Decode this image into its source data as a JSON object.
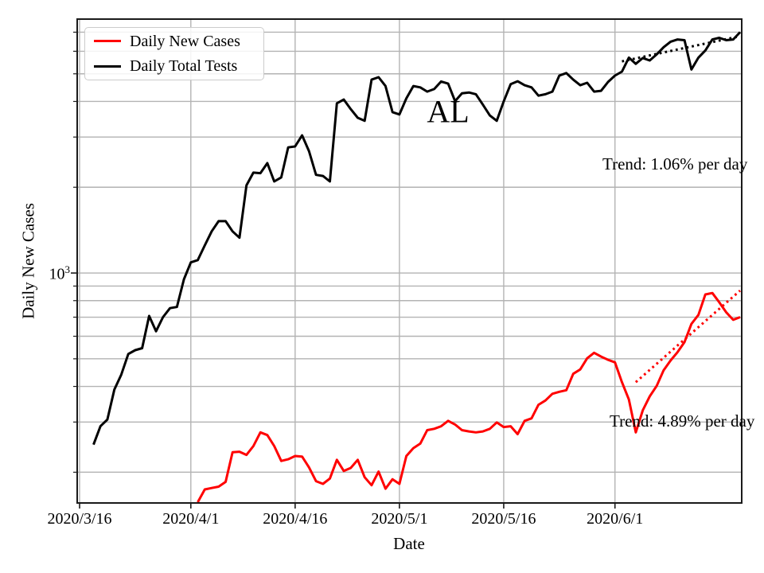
{
  "chart_data": {
    "type": "line",
    "yscale": "log",
    "state_label": "AL",
    "xlabel": "Date",
    "ylabel": "Daily New Cases",
    "x_ticks": [
      "2020/3/16",
      "2020/4/1",
      "2020/4/16",
      "2020/5/1",
      "2020/5/16",
      "2020/6/1"
    ],
    "xlim": [
      "2020/3/16",
      "2020/6/19"
    ],
    "ylim": [
      156,
      7780
    ],
    "y_major_tick": {
      "base": "10",
      "exponent": "3",
      "value": 1000
    },
    "y_minor_ticks": [
      200,
      300,
      400,
      500,
      600,
      700,
      800,
      900,
      2000,
      3000,
      4000,
      5000,
      6000,
      7000
    ],
    "grid": true,
    "legend_position": "upper-left",
    "legend": [
      {
        "label": "Daily New Cases",
        "color": "#ff0000"
      },
      {
        "label": "Daily Total Tests",
        "color": "#000000"
      }
    ],
    "annotations": [
      {
        "id": "tests-trend",
        "text": "Trend: 1.06% per day",
        "color": "#000000"
      },
      {
        "id": "cases-trend",
        "text": "Trend: 4.89% per day",
        "color": "#000000"
      }
    ],
    "series": [
      {
        "name": "Daily Total Tests",
        "color": "#000000",
        "style": "solid",
        "points": [
          [
            "2020/3/18",
            250
          ],
          [
            "2020/3/19",
            290
          ],
          [
            "2020/3/20",
            306
          ],
          [
            "2020/3/21",
            390
          ],
          [
            "2020/3/22",
            440
          ],
          [
            "2020/3/23",
            520
          ],
          [
            "2020/3/24",
            536
          ],
          [
            "2020/3/25",
            545
          ],
          [
            "2020/3/26",
            707
          ],
          [
            "2020/3/27",
            625
          ],
          [
            "2020/3/28",
            700
          ],
          [
            "2020/3/29",
            753
          ],
          [
            "2020/3/30",
            760
          ],
          [
            "2020/3/31",
            950
          ],
          [
            "2020/4/1",
            1090
          ],
          [
            "2020/4/2",
            1110
          ],
          [
            "2020/4/3",
            1250
          ],
          [
            "2020/4/4",
            1400
          ],
          [
            "2020/4/5",
            1520
          ],
          [
            "2020/4/6",
            1520
          ],
          [
            "2020/4/7",
            1400
          ],
          [
            "2020/4/8",
            1330
          ],
          [
            "2020/4/9",
            2030
          ],
          [
            "2020/4/10",
            2250
          ],
          [
            "2020/4/11",
            2240
          ],
          [
            "2020/4/12",
            2430
          ],
          [
            "2020/4/13",
            2095
          ],
          [
            "2020/4/14",
            2165
          ],
          [
            "2020/4/15",
            2760
          ],
          [
            "2020/4/16",
            2780
          ],
          [
            "2020/4/17",
            3040
          ],
          [
            "2020/4/18",
            2675
          ],
          [
            "2020/4/19",
            2210
          ],
          [
            "2020/4/20",
            2190
          ],
          [
            "2020/4/21",
            2095
          ],
          [
            "2020/4/22",
            3940
          ],
          [
            "2020/4/23",
            4060
          ],
          [
            "2020/4/24",
            3760
          ],
          [
            "2020/4/25",
            3505
          ],
          [
            "2020/4/26",
            3420
          ],
          [
            "2020/4/27",
            4770
          ],
          [
            "2020/4/28",
            4865
          ],
          [
            "2020/4/29",
            4530
          ],
          [
            "2020/4/30",
            3670
          ],
          [
            "2020/5/1",
            3600
          ],
          [
            "2020/5/2",
            4100
          ],
          [
            "2020/5/3",
            4530
          ],
          [
            "2020/5/4",
            4480
          ],
          [
            "2020/5/5",
            4330
          ],
          [
            "2020/5/6",
            4420
          ],
          [
            "2020/5/7",
            4700
          ],
          [
            "2020/5/8",
            4620
          ],
          [
            "2020/5/9",
            4010
          ],
          [
            "2020/5/10",
            4270
          ],
          [
            "2020/5/11",
            4300
          ],
          [
            "2020/5/12",
            4240
          ],
          [
            "2020/5/13",
            3900
          ],
          [
            "2020/5/14",
            3570
          ],
          [
            "2020/5/15",
            3420
          ],
          [
            "2020/5/16",
            4000
          ],
          [
            "2020/5/17",
            4600
          ],
          [
            "2020/5/18",
            4710
          ],
          [
            "2020/5/19",
            4560
          ],
          [
            "2020/5/20",
            4480
          ],
          [
            "2020/5/21",
            4190
          ],
          [
            "2020/5/22",
            4240
          ],
          [
            "2020/5/23",
            4330
          ],
          [
            "2020/5/24",
            4930
          ],
          [
            "2020/5/25",
            5030
          ],
          [
            "2020/5/26",
            4770
          ],
          [
            "2020/5/27",
            4560
          ],
          [
            "2020/5/28",
            4650
          ],
          [
            "2020/5/29",
            4330
          ],
          [
            "2020/5/30",
            4360
          ],
          [
            "2020/5/31",
            4680
          ],
          [
            "2020/6/1",
            4930
          ],
          [
            "2020/6/2",
            5090
          ],
          [
            "2020/6/3",
            5700
          ],
          [
            "2020/6/4",
            5420
          ],
          [
            "2020/6/5",
            5680
          ],
          [
            "2020/6/6",
            5570
          ],
          [
            "2020/6/7",
            5850
          ],
          [
            "2020/6/8",
            6200
          ],
          [
            "2020/6/9",
            6480
          ],
          [
            "2020/6/10",
            6600
          ],
          [
            "2020/6/11",
            6560
          ],
          [
            "2020/6/12",
            5180
          ],
          [
            "2020/6/13",
            5700
          ],
          [
            "2020/6/14",
            6040
          ],
          [
            "2020/6/15",
            6600
          ],
          [
            "2020/6/16",
            6690
          ],
          [
            "2020/6/17",
            6560
          ],
          [
            "2020/6/18",
            6600
          ],
          [
            "2020/6/19",
            7000
          ]
        ]
      },
      {
        "name": "Daily New Cases",
        "color": "#ff0000",
        "style": "solid",
        "points": [
          [
            "2020/4/2",
            157
          ],
          [
            "2020/4/3",
            174
          ],
          [
            "2020/4/4",
            176
          ],
          [
            "2020/4/5",
            178
          ],
          [
            "2020/4/6",
            185
          ],
          [
            "2020/4/7",
            235
          ],
          [
            "2020/4/8",
            236
          ],
          [
            "2020/4/9",
            230
          ],
          [
            "2020/4/10",
            247
          ],
          [
            "2020/4/11",
            276
          ],
          [
            "2020/4/12",
            270
          ],
          [
            "2020/4/13",
            247
          ],
          [
            "2020/4/14",
            219
          ],
          [
            "2020/4/15",
            222
          ],
          [
            "2020/4/16",
            228
          ],
          [
            "2020/4/17",
            227
          ],
          [
            "2020/4/18",
            208
          ],
          [
            "2020/4/19",
            186
          ],
          [
            "2020/4/20",
            182
          ],
          [
            "2020/4/21",
            190
          ],
          [
            "2020/4/22",
            221
          ],
          [
            "2020/4/23",
            202
          ],
          [
            "2020/4/24",
            207
          ],
          [
            "2020/4/25",
            221
          ],
          [
            "2020/4/26",
            192
          ],
          [
            "2020/4/27",
            180
          ],
          [
            "2020/4/28",
            201
          ],
          [
            "2020/4/29",
            175
          ],
          [
            "2020/4/30",
            189
          ],
          [
            "2020/5/1",
            182
          ],
          [
            "2020/5/2",
            228
          ],
          [
            "2020/5/3",
            243
          ],
          [
            "2020/5/4",
            252
          ],
          [
            "2020/5/5",
            281
          ],
          [
            "2020/5/6",
            284
          ],
          [
            "2020/5/7",
            290
          ],
          [
            "2020/5/8",
            303
          ],
          [
            "2020/5/9",
            294
          ],
          [
            "2020/5/10",
            281
          ],
          [
            "2020/5/11",
            278
          ],
          [
            "2020/5/12",
            276
          ],
          [
            "2020/5/13",
            278
          ],
          [
            "2020/5/14",
            284
          ],
          [
            "2020/5/15",
            299
          ],
          [
            "2020/5/16",
            288
          ],
          [
            "2020/5/17",
            290
          ],
          [
            "2020/5/18",
            272
          ],
          [
            "2020/5/19",
            303
          ],
          [
            "2020/5/20",
            309
          ],
          [
            "2020/5/21",
            345
          ],
          [
            "2020/5/22",
            357
          ],
          [
            "2020/5/23",
            377
          ],
          [
            "2020/5/24",
            383
          ],
          [
            "2020/5/25",
            388
          ],
          [
            "2020/5/26",
            443
          ],
          [
            "2020/5/27",
            459
          ],
          [
            "2020/5/28",
            502
          ],
          [
            "2020/5/29",
            525
          ],
          [
            "2020/5/30",
            509
          ],
          [
            "2020/5/31",
            496
          ],
          [
            "2020/6/1",
            486
          ],
          [
            "2020/6/2",
            414
          ],
          [
            "2020/6/3",
            360
          ],
          [
            "2020/6/4",
            276
          ],
          [
            "2020/6/5",
            330
          ],
          [
            "2020/6/6",
            369
          ],
          [
            "2020/6/7",
            402
          ],
          [
            "2020/6/8",
            456
          ],
          [
            "2020/6/9",
            493
          ],
          [
            "2020/6/10",
            528
          ],
          [
            "2020/6/11",
            572
          ],
          [
            "2020/6/12",
            663
          ],
          [
            "2020/6/13",
            713
          ],
          [
            "2020/6/14",
            841
          ],
          [
            "2020/6/15",
            851
          ],
          [
            "2020/6/16",
            789
          ],
          [
            "2020/6/17",
            728
          ],
          [
            "2020/6/18",
            685
          ],
          [
            "2020/6/19",
            700
          ]
        ]
      },
      {
        "name": "Tests trend (1.06% per day)",
        "color": "#000000",
        "style": "dotted",
        "points": [
          [
            "2020/6/2",
            5530
          ],
          [
            "2020/6/19",
            6780
          ]
        ]
      },
      {
        "name": "Cases trend (4.89% per day)",
        "color": "#ff0000",
        "style": "dotted",
        "points": [
          [
            "2020/6/4",
            414
          ],
          [
            "2020/6/19",
            868
          ]
        ]
      }
    ]
  }
}
